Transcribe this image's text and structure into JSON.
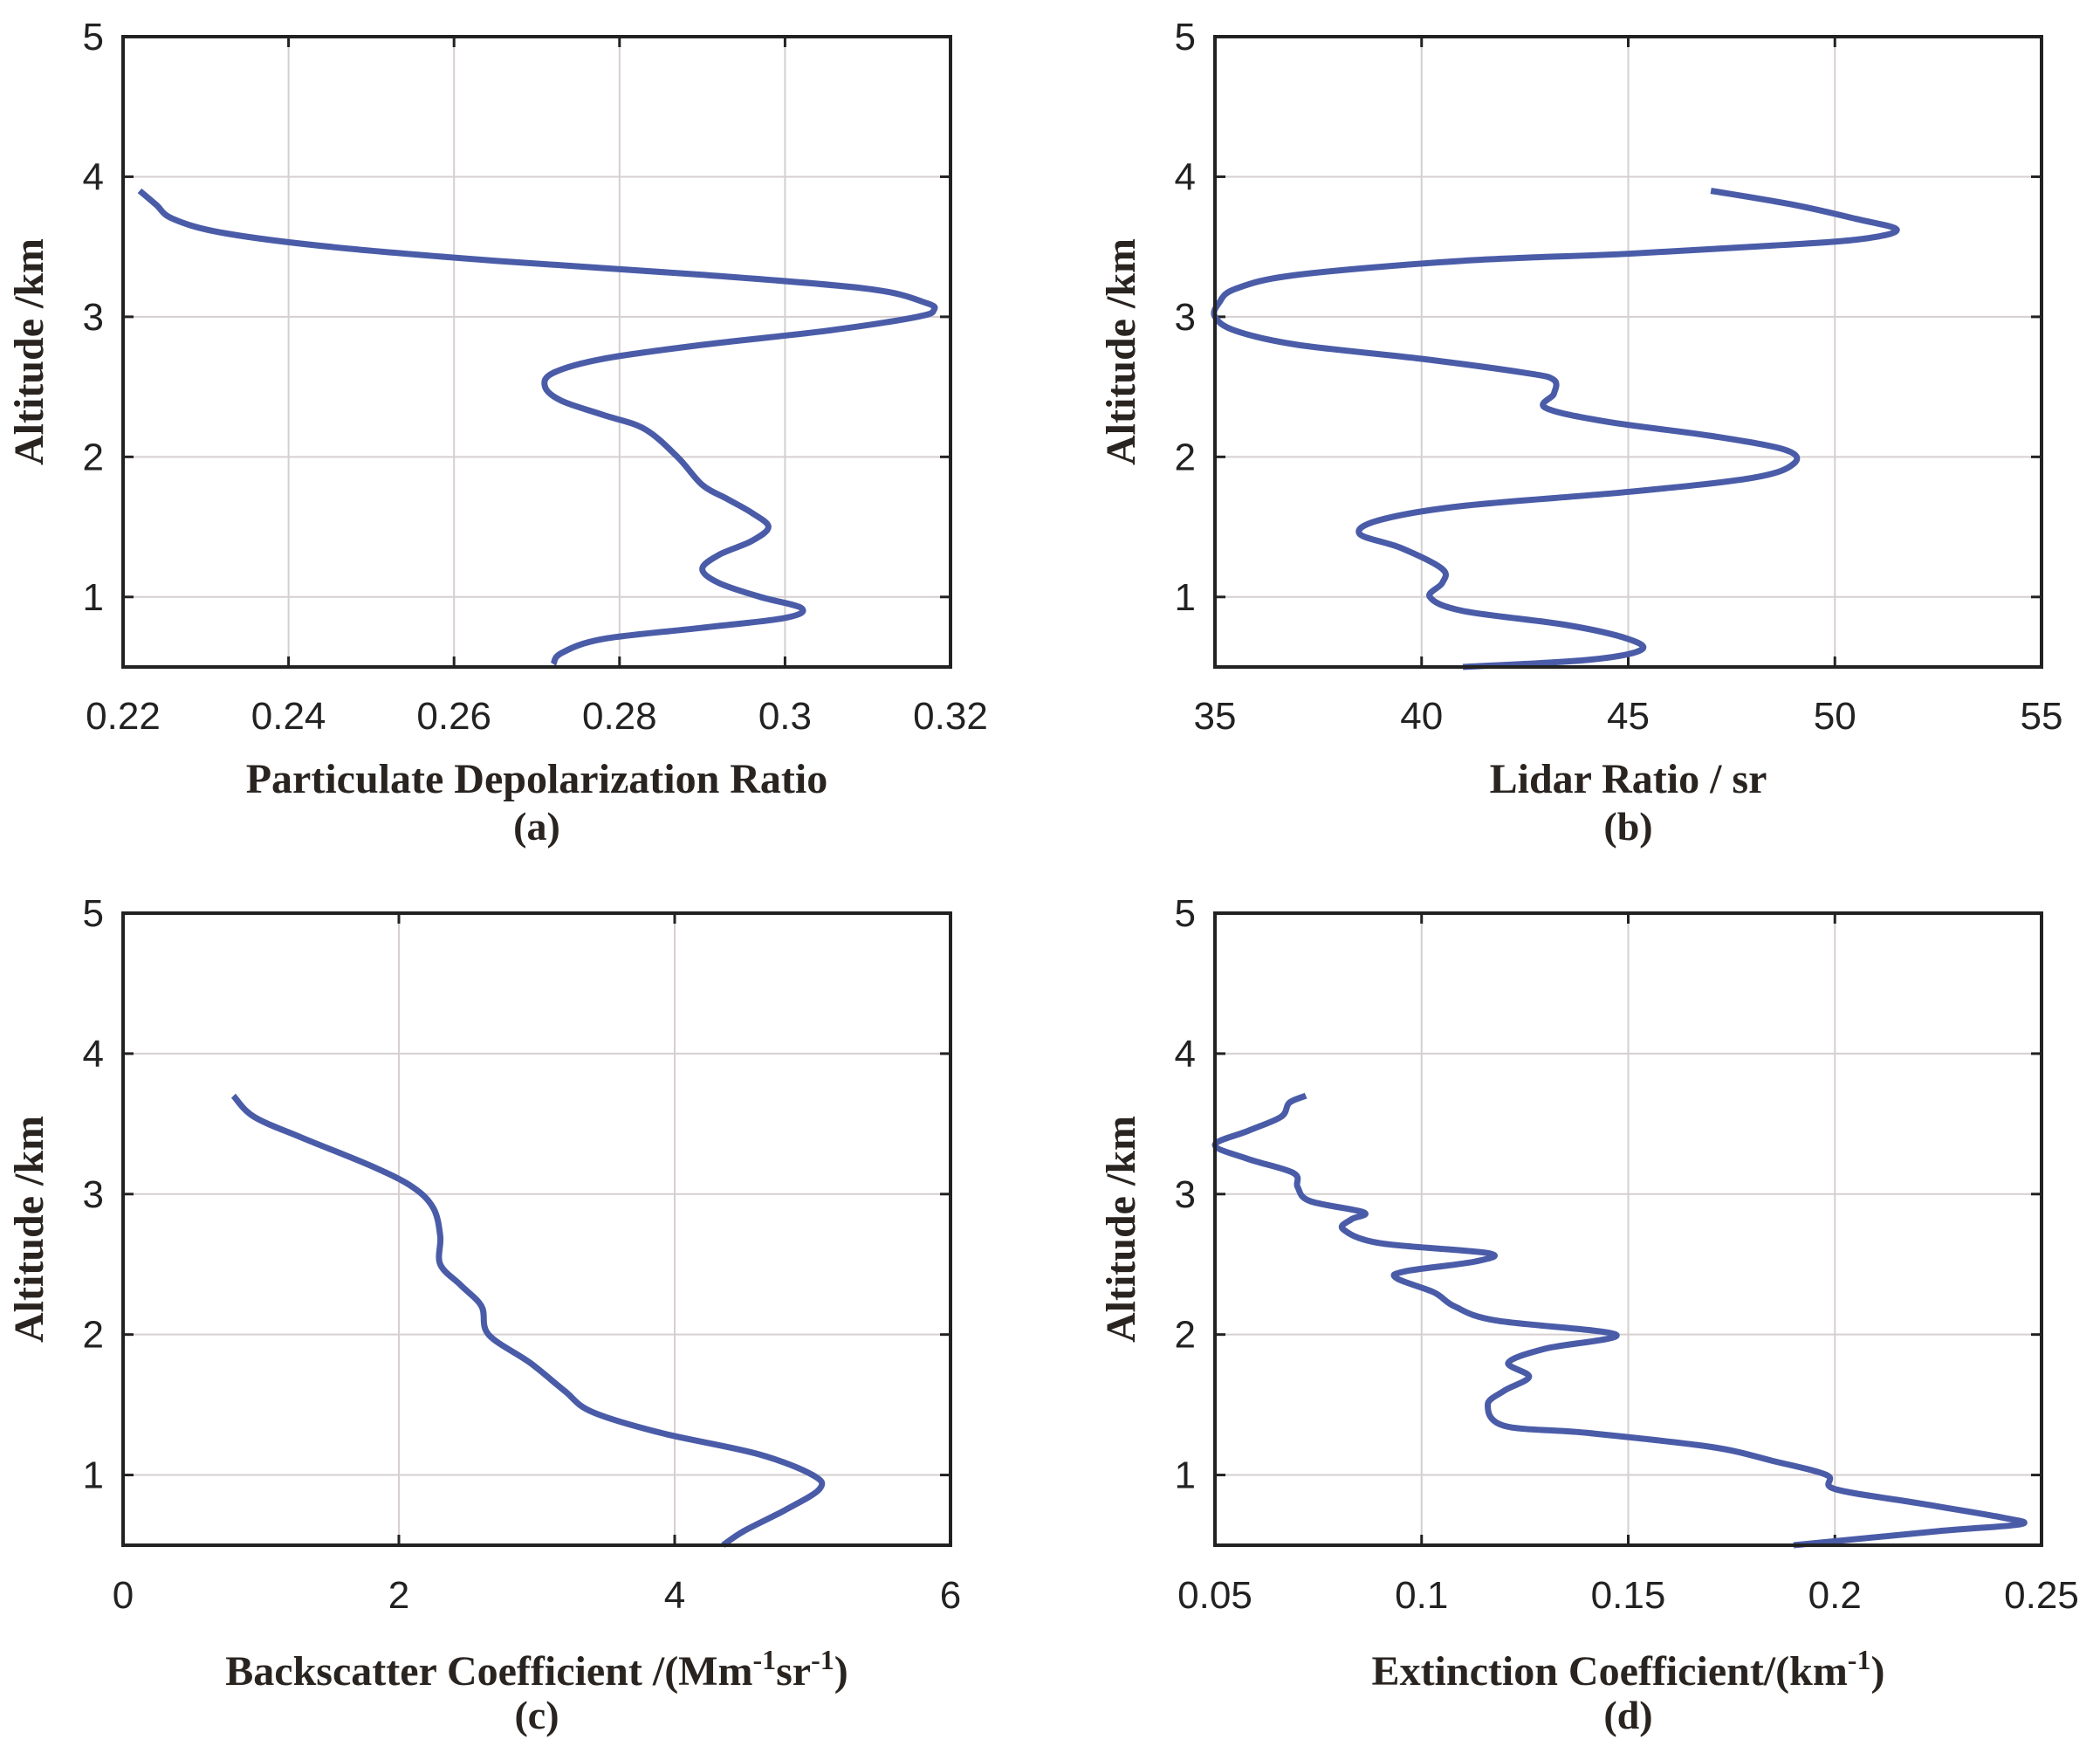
{
  "colors": {
    "line": "#4a5ca8",
    "grid": "#d6cfcf",
    "axis": "#222222"
  },
  "chart_data": [
    {
      "type": "line",
      "panel_label": "(a)",
      "xlabel_parts": [
        {
          "t": "Particulate Depolarization Ratio",
          "sup": false
        }
      ],
      "ylabel": "Altitude /km",
      "xlim": [
        0.22,
        0.32
      ],
      "ylim": [
        0.5,
        5
      ],
      "xticks": [
        "0.22",
        "0.24",
        "0.26",
        "0.28",
        "0.3",
        "0.32"
      ],
      "xtick_values": [
        0.22,
        0.24,
        0.26,
        0.28,
        0.3,
        0.32
      ],
      "yticks": [
        "1",
        "2",
        "3",
        "4",
        "5"
      ],
      "ytick_values": [
        1,
        2,
        3,
        4,
        5
      ],
      "grid": true,
      "series": [
        {
          "name": "depolarization",
          "y": [
            3.9,
            3.8,
            3.7,
            3.6,
            3.5,
            3.4,
            3.3,
            3.2,
            3.1,
            3.05,
            3.0,
            2.9,
            2.8,
            2.7,
            2.6,
            2.5,
            2.4,
            2.3,
            2.2,
            2.0,
            1.8,
            1.7,
            1.6,
            1.5,
            1.4,
            1.3,
            1.2,
            1.1,
            1.0,
            0.92,
            0.85,
            0.78,
            0.7,
            0.6,
            0.52
          ],
          "x": [
            0.222,
            0.224,
            0.226,
            0.232,
            0.245,
            0.265,
            0.29,
            0.31,
            0.317,
            0.318,
            0.316,
            0.305,
            0.29,
            0.278,
            0.272,
            0.271,
            0.273,
            0.278,
            0.283,
            0.287,
            0.29,
            0.293,
            0.296,
            0.298,
            0.296,
            0.292,
            0.29,
            0.292,
            0.297,
            0.302,
            0.3,
            0.29,
            0.278,
            0.273,
            0.272
          ]
        }
      ]
    },
    {
      "type": "line",
      "panel_label": "(b)",
      "xlabel_parts": [
        {
          "t": "Lidar Ratio / sr",
          "sup": false
        }
      ],
      "ylabel": "Altitude /km",
      "xlim": [
        35,
        55
      ],
      "ylim": [
        0.5,
        5
      ],
      "xticks": [
        "35",
        "40",
        "45",
        "50",
        "55"
      ],
      "xtick_values": [
        35,
        40,
        45,
        50,
        55
      ],
      "yticks": [
        "1",
        "2",
        "3",
        "4",
        "5"
      ],
      "ytick_values": [
        1,
        2,
        3,
        4,
        5
      ],
      "grid": true,
      "series": [
        {
          "name": "lidar ratio",
          "y": [
            3.9,
            3.8,
            3.7,
            3.62,
            3.55,
            3.5,
            3.45,
            3.4,
            3.3,
            3.2,
            3.1,
            3.0,
            2.9,
            2.8,
            2.7,
            2.6,
            2.55,
            2.45,
            2.35,
            2.25,
            2.15,
            2.05,
            1.95,
            1.85,
            1.75,
            1.65,
            1.55,
            1.45,
            1.35,
            1.2,
            1.1,
            1.0,
            0.9,
            0.8,
            0.7,
            0.62,
            0.55,
            0.5
          ],
          "x": [
            47,
            49,
            50.5,
            51.5,
            50.5,
            48,
            45,
            41,
            37,
            35.5,
            35.1,
            35,
            35.5,
            37,
            40,
            42.5,
            43.2,
            43.2,
            43,
            44.5,
            47,
            48.8,
            49,
            48,
            45,
            41,
            39,
            38.5,
            39.5,
            40.5,
            40.5,
            40.2,
            41,
            43.5,
            45,
            45.3,
            44,
            41
          ]
        }
      ]
    },
    {
      "type": "line",
      "panel_label": "(c)",
      "xlabel_parts": [
        {
          "t": "Backscatter Coefficient /(Mm",
          "sup": false
        },
        {
          "t": "-1",
          "sup": true
        },
        {
          "t": "sr",
          "sup": false
        },
        {
          "t": "-1",
          "sup": true
        },
        {
          "t": ")",
          "sup": false
        }
      ],
      "ylabel": "Altitude /km",
      "xlim": [
        0,
        6
      ],
      "ylim": [
        0.5,
        5
      ],
      "xticks": [
        "0",
        "2",
        "4",
        "6"
      ],
      "xtick_values": [
        0,
        2,
        4,
        6
      ],
      "yticks": [
        "1",
        "2",
        "3",
        "4",
        "5"
      ],
      "ytick_values": [
        1,
        2,
        3,
        4,
        5
      ],
      "grid": true,
      "series": [
        {
          "name": "backscatter",
          "y": [
            3.7,
            3.55,
            3.4,
            3.2,
            3.05,
            2.9,
            2.7,
            2.5,
            2.35,
            2.2,
            2.0,
            1.8,
            1.6,
            1.45,
            1.3,
            1.15,
            1.0,
            0.9,
            0.75,
            0.6,
            0.5
          ],
          "x": [
            0.8,
            0.95,
            1.3,
            1.8,
            2.1,
            2.25,
            2.3,
            2.3,
            2.45,
            2.6,
            2.65,
            2.95,
            3.2,
            3.4,
            3.9,
            4.6,
            5.0,
            5.05,
            4.8,
            4.5,
            4.35
          ]
        }
      ]
    },
    {
      "type": "line",
      "panel_label": "(d)",
      "xlabel_parts": [
        {
          "t": "Extinction Coefficient/(km",
          "sup": false
        },
        {
          "t": "-1",
          "sup": true
        },
        {
          "t": ")",
          "sup": false
        }
      ],
      "ylabel": "Altitude /km",
      "xlim": [
        0.05,
        0.25
      ],
      "ylim": [
        0.5,
        5
      ],
      "xticks": [
        "0.05",
        "0.1",
        "0.15",
        "0.2",
        "0.25"
      ],
      "xtick_values": [
        0.05,
        0.1,
        0.15,
        0.2,
        0.25
      ],
      "yticks": [
        "1",
        "2",
        "3",
        "4",
        "5"
      ],
      "ytick_values": [
        1,
        2,
        3,
        4,
        5
      ],
      "grid": true,
      "series": [
        {
          "name": "extinction",
          "y": [
            3.7,
            3.65,
            3.55,
            3.45,
            3.35,
            3.25,
            3.15,
            3.05,
            2.95,
            2.87,
            2.82,
            2.75,
            2.65,
            2.58,
            2.52,
            2.45,
            2.4,
            2.3,
            2.2,
            2.1,
            2.0,
            1.9,
            1.8,
            1.7,
            1.6,
            1.5,
            1.35,
            1.3,
            1.2,
            1.1,
            1.0,
            0.9,
            0.8,
            0.7,
            0.65,
            0.6,
            0.5
          ],
          "x": [
            0.072,
            0.068,
            0.066,
            0.058,
            0.05,
            0.058,
            0.069,
            0.07,
            0.073,
            0.086,
            0.083,
            0.081,
            0.09,
            0.116,
            0.113,
            0.096,
            0.094,
            0.103,
            0.108,
            0.118,
            0.147,
            0.13,
            0.121,
            0.126,
            0.12,
            0.116,
            0.12,
            0.14,
            0.17,
            0.185,
            0.198,
            0.2,
            0.22,
            0.24,
            0.245,
            0.225,
            0.19
          ]
        }
      ]
    }
  ]
}
